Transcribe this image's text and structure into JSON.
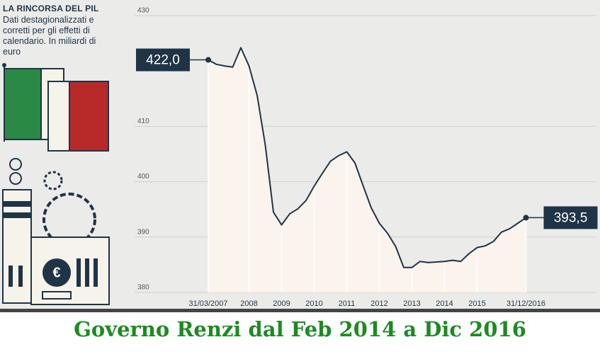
{
  "title": "LA RINCORSA DEL PIL",
  "subtitle": "Dati destagionalizzati e corretti per gli effetti di calendario. In miliardi di euro",
  "caption": "Governo Renzi dal Feb 2014 a Dic 2016",
  "chart_data": {
    "type": "area",
    "categories": [
      "31/03/2007",
      null,
      null,
      null,
      null,
      "2008",
      null,
      null,
      null,
      "2009",
      null,
      null,
      null,
      "2010",
      null,
      null,
      null,
      "2011",
      null,
      null,
      null,
      "2012",
      null,
      null,
      null,
      "2013",
      null,
      null,
      null,
      "2014",
      null,
      null,
      null,
      "2015",
      null,
      null,
      null,
      null,
      null,
      "31/12/2016"
    ],
    "values": [
      422.0,
      421.2,
      420.9,
      420.7,
      424.2,
      420.9,
      415.6,
      406.6,
      394.5,
      392.2,
      394.2,
      395.1,
      396.6,
      399.2,
      401.5,
      403.7,
      404.7,
      405.4,
      403.4,
      399.3,
      395.3,
      392.5,
      390.7,
      388.3,
      384.5,
      384.5,
      385.6,
      385.4,
      385.5,
      385.6,
      385.8,
      385.6,
      387.0,
      388.1,
      388.4,
      389.2,
      390.9,
      391.5,
      392.5,
      393.5
    ],
    "value_labels": [
      "422,0",
      null,
      null,
      null,
      null,
      null,
      null,
      null,
      null,
      null,
      null,
      null,
      null,
      null,
      null,
      null,
      null,
      null,
      null,
      null,
      null,
      null,
      null,
      null,
      null,
      null,
      null,
      null,
      null,
      null,
      null,
      null,
      null,
      null,
      null,
      null,
      null,
      null,
      null,
      "393,5"
    ],
    "color": "#1f3447",
    "fill": "#faf4ec",
    "ylim": [
      380,
      430
    ],
    "yticks": [
      380,
      390,
      400,
      410,
      430
    ],
    "grid": true
  }
}
